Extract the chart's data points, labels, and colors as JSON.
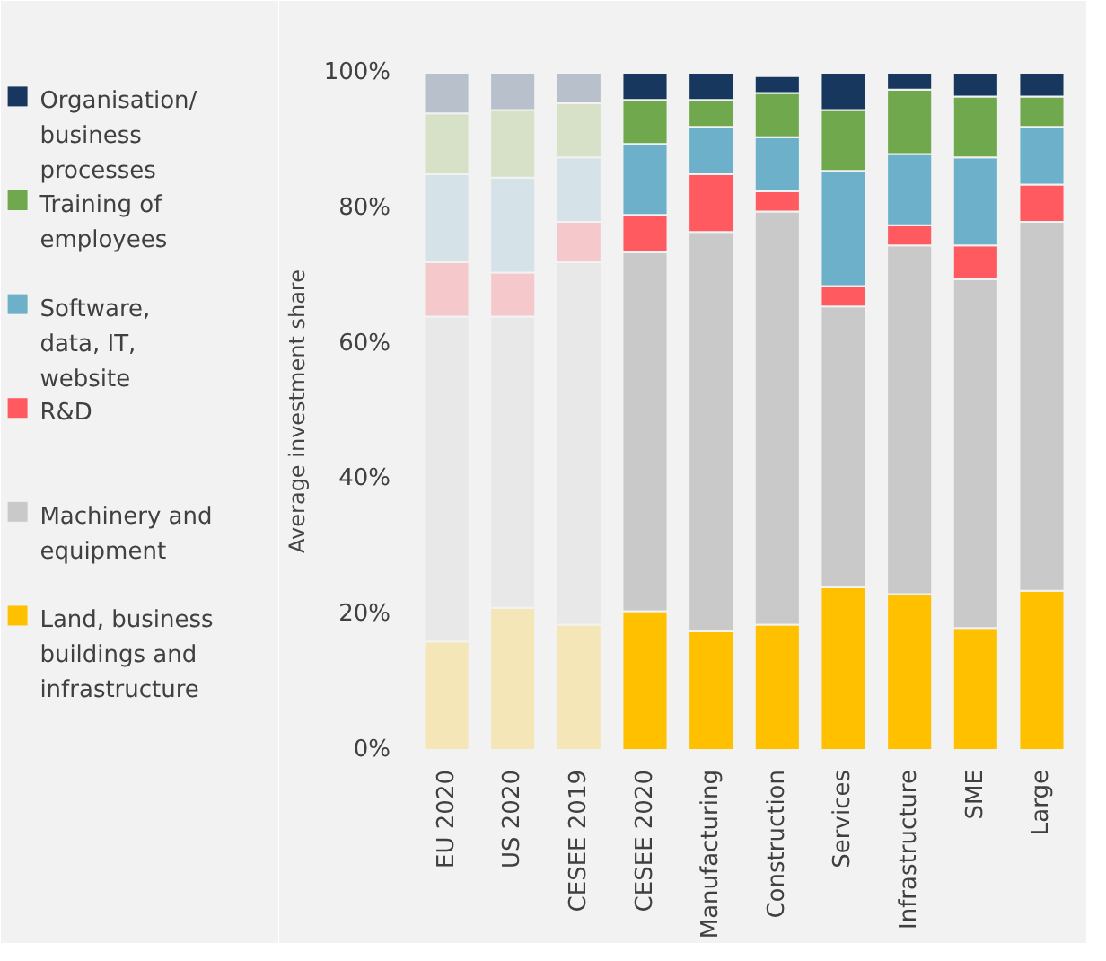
{
  "chart_data": {
    "type": "bar",
    "stacked": true,
    "ylabel": "Average investment share",
    "categories": [
      "EU 2020",
      "US 2020",
      "CESEE 2019",
      "CESEE 2020",
      "Manufacturing",
      "Construction",
      "Services",
      "Infrastructure",
      "SME",
      "Large"
    ],
    "ylim": [
      0,
      100
    ],
    "yticks": [
      {
        "value": 0,
        "label": "0%"
      },
      {
        "value": 20,
        "label": "20%"
      },
      {
        "value": 40,
        "label": "40%"
      },
      {
        "value": 60,
        "label": "60%"
      },
      {
        "value": 80,
        "label": "80%"
      },
      {
        "value": 100,
        "label": "100%"
      }
    ],
    "grid": false,
    "legend": "left",
    "series": [
      {
        "name": "Land, business buildings and infrastructure",
        "color": "#ffc000",
        "colors": [
          "#f5e6b8",
          "#f5e6b8",
          "#f5e6b8",
          "#ffc000",
          "#ffc000",
          "#ffc000",
          "#ffc000",
          "#ffc000",
          "#ffc000",
          "#ffc000"
        ],
        "values": [
          16,
          21,
          18.5,
          20.5,
          17.5,
          18.5,
          24,
          23,
          18,
          23.5
        ]
      },
      {
        "name": "Machinery and equipment",
        "color": "#c9c9c9",
        "colors": [
          "#e8e8e8",
          "#e8e8e8",
          "#e8e8e8",
          "#c9c9c9",
          "#c9c9c9",
          "#c9c9c9",
          "#c9c9c9",
          "#c9c9c9",
          "#c9c9c9",
          "#c9c9c9"
        ],
        "values": [
          48,
          43,
          53.5,
          53,
          59,
          61,
          41.5,
          51.5,
          51.5,
          54.5
        ]
      },
      {
        "name": "R&D",
        "color": "#ff5a5f",
        "colors": [
          "#f5c9cb",
          "#f5c9cb",
          "#f5c9cb",
          "#ff5a5f",
          "#ff5a5f",
          "#ff5a5f",
          "#ff5a5f",
          "#ff5a5f",
          "#ff5a5f",
          "#ff5a5f"
        ],
        "values": [
          8,
          6.5,
          6,
          5.5,
          8.5,
          3,
          3,
          3,
          5,
          5.5
        ]
      },
      {
        "name": "Software, data, IT, website",
        "color": "#6cb0c9",
        "colors": [
          "#d5e3e8",
          "#d5e3e8",
          "#d5e3e8",
          "#6cb0c9",
          "#6cb0c9",
          "#6cb0c9",
          "#6cb0c9",
          "#6cb0c9",
          "#6cb0c9",
          "#6cb0c9"
        ],
        "values": [
          13,
          14,
          9.5,
          10.5,
          7,
          8,
          17,
          10.5,
          13,
          8.5
        ]
      },
      {
        "name": "Training of employees",
        "color": "#70a84e",
        "colors": [
          "#d6e1c8",
          "#d6e1c8",
          "#d6e1c8",
          "#70a84e",
          "#70a84e",
          "#70a84e",
          "#70a84e",
          "#70a84e",
          "#70a84e",
          "#70a84e"
        ],
        "values": [
          9,
          10,
          8,
          6.5,
          4,
          6.5,
          9,
          9.5,
          9,
          4.5
        ]
      },
      {
        "name": "Organisation/ business processes",
        "color": "#17375e",
        "colors": [
          "#b8c0cc",
          "#b8c0cc",
          "#b8c0cc",
          "#17375e",
          "#17375e",
          "#17375e",
          "#17375e",
          "#17375e",
          "#17375e",
          "#17375e"
        ],
        "values": [
          6,
          5.5,
          4.5,
          4,
          4,
          2.5,
          5.5,
          2.5,
          3.5,
          3.5
        ]
      }
    ]
  }
}
